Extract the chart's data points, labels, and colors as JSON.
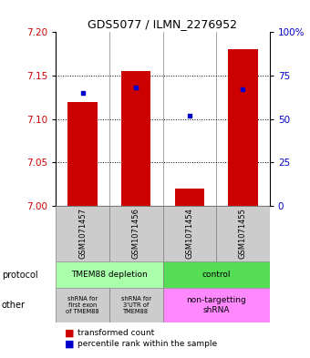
{
  "title": "GDS5077 / ILMN_2276952",
  "samples": [
    "GSM1071457",
    "GSM1071456",
    "GSM1071454",
    "GSM1071455"
  ],
  "transformed_counts": [
    7.12,
    7.155,
    7.02,
    7.18
  ],
  "percentile_ranks": [
    65,
    68,
    52,
    67
  ],
  "ylim_left": [
    7.0,
    7.2
  ],
  "ylim_right": [
    0,
    100
  ],
  "yticks_left": [
    7.0,
    7.05,
    7.1,
    7.15,
    7.2
  ],
  "yticks_right": [
    0,
    25,
    50,
    75,
    100
  ],
  "bar_color": "#cc0000",
  "dot_color": "#0000cc",
  "bar_width": 0.55,
  "sample_box_color": "#cccccc",
  "legend_red": "transformed count",
  "legend_blue": "percentile rank within the sample",
  "left_label": "protocol",
  "other_label": "other",
  "proto_color1": "#aaffaa",
  "proto_color2": "#55dd55",
  "other_color1": "#cccccc",
  "other_color2": "#ff88ff",
  "fig_width": 3.4,
  "fig_height": 3.93,
  "dpi": 100
}
